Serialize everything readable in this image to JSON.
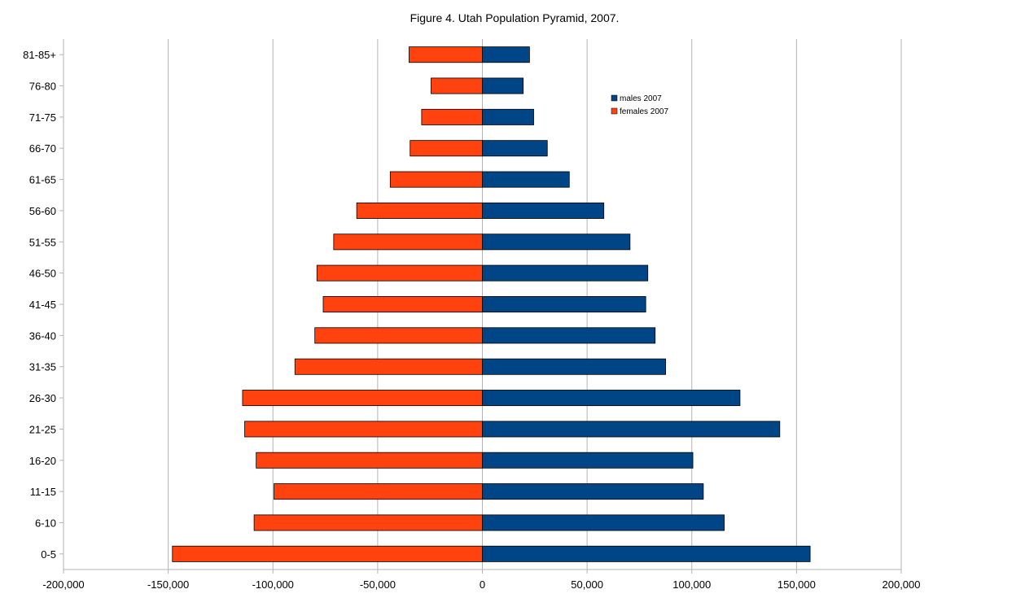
{
  "chart_data": {
    "type": "bar",
    "orientation": "horizontal",
    "title": "Figure 4. Utah Population Pyramid, 2007.",
    "categories": [
      "0-5",
      "6-10",
      "11-15",
      "16-20",
      "21-25",
      "26-30",
      "31-35",
      "36-40",
      "41-45",
      "46-50",
      "51-55",
      "56-60",
      "61-65",
      "66-70",
      "71-75",
      "76-80",
      "81-85+"
    ],
    "series": [
      {
        "name": "males 2007",
        "color": "#004586",
        "values": [
          156500,
          115500,
          105500,
          100500,
          142000,
          123000,
          87500,
          82500,
          78000,
          79000,
          70500,
          58000,
          41500,
          31000,
          24500,
          19500,
          22500
        ]
      },
      {
        "name": "females 2007",
        "color": "#ff420e",
        "values": [
          -148000,
          -109000,
          -99500,
          -108000,
          -113500,
          -114500,
          -89500,
          -80000,
          -76000,
          -79000,
          -71000,
          -60000,
          -44000,
          -34500,
          -29000,
          -24500,
          -35000
        ]
      }
    ],
    "xlim": [
      -200000,
      200000
    ],
    "x_ticks": [
      -200000,
      -150000,
      -100000,
      -50000,
      0,
      50000,
      100000,
      150000,
      200000
    ],
    "x_tick_labels": [
      "-200,000",
      "-150,000",
      "-100,000",
      "-50,000",
      "0",
      "50,000",
      "100,000",
      "150,000",
      "200,000"
    ],
    "grid": "vertical",
    "legend_position": "top-right"
  }
}
